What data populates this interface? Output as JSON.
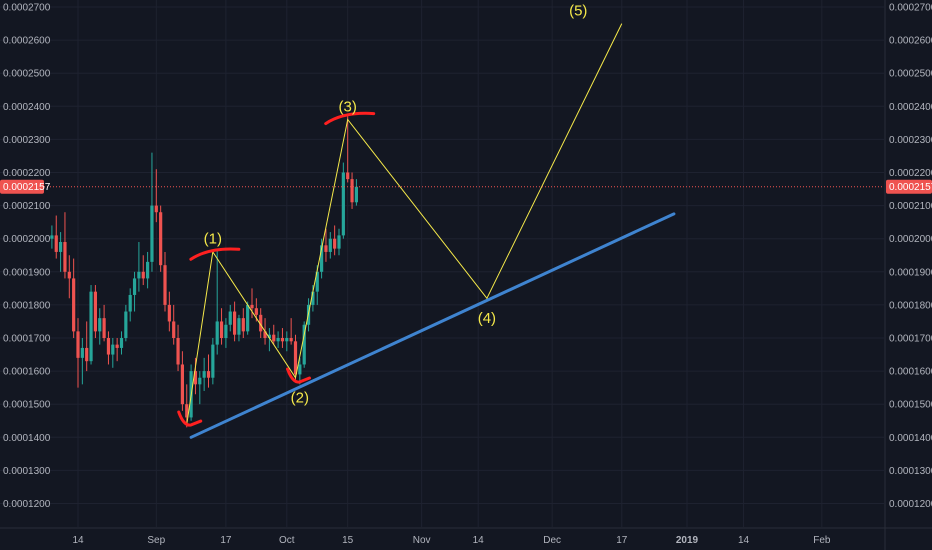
{
  "colors": {
    "background": "#131722",
    "grid": "#1e2230",
    "axis_text": "#b2b5be",
    "up_candle": "#26a69a",
    "down_candle": "#ef5350",
    "trendline": "#3f84d0",
    "wave_line": "#f5e94a",
    "wave_label": "#f5e94a",
    "marker": "#ff2020",
    "price_line": "#ef5350",
    "price_badge": "#ef5350"
  },
  "chart_data": {
    "type": "candlestick",
    "ylim": [
      0.000115,
      0.000271
    ],
    "y_ticks": [
      "0.0001200",
      "0.0001300",
      "0.0001400",
      "0.0001500",
      "0.0001600",
      "0.0001700",
      "0.0001800",
      "0.0001900",
      "0.0002000",
      "0.0002100",
      "0.0002200",
      "0.0002300",
      "0.0002400",
      "0.0002500",
      "0.0002600",
      "0.0002700"
    ],
    "x_ticks": [
      {
        "label": "14",
        "day": 0,
        "bold": false
      },
      {
        "label": "Sep",
        "day": 18,
        "bold": false
      },
      {
        "label": "17",
        "day": 34,
        "bold": false
      },
      {
        "label": "Oct",
        "day": 48,
        "bold": false
      },
      {
        "label": "15",
        "day": 62,
        "bold": false
      },
      {
        "label": "Nov",
        "day": 79,
        "bold": false
      },
      {
        "label": "14",
        "day": 92,
        "bold": false
      },
      {
        "label": "Dec",
        "day": 109,
        "bold": false
      },
      {
        "label": "17",
        "day": 125,
        "bold": false
      },
      {
        "label": "2019",
        "day": 140,
        "bold": true
      },
      {
        "label": "14",
        "day": 153,
        "bold": false
      },
      {
        "label": "Feb",
        "day": 171,
        "bold": false
      }
    ],
    "current_price": {
      "label": "0.0002157",
      "value": 0.0002157
    },
    "candles": [
      {
        "day": -6,
        "o": 0.0002,
        "h": 0.000204,
        "l": 0.000197,
        "c": 0.000201
      },
      {
        "day": -5,
        "o": 0.000201,
        "h": 0.000207,
        "l": 0.000194,
        "c": 0.000196
      },
      {
        "day": -4,
        "o": 0.000196,
        "h": 0.000202,
        "l": 0.00019,
        "c": 0.000199
      },
      {
        "day": -3,
        "o": 0.000199,
        "h": 0.000208,
        "l": 0.000188,
        "c": 0.00019
      },
      {
        "day": -2,
        "o": 0.00019,
        "h": 0.000195,
        "l": 0.000182,
        "c": 0.000188
      },
      {
        "day": -1,
        "o": 0.000188,
        "h": 0.000194,
        "l": 0.00017,
        "c": 0.000172
      },
      {
        "day": 0,
        "o": 0.000172,
        "h": 0.000176,
        "l": 0.000155,
        "c": 0.000164
      },
      {
        "day": 1,
        "o": 0.000164,
        "h": 0.00017,
        "l": 0.000156,
        "c": 0.000167
      },
      {
        "day": 2,
        "o": 0.000167,
        "h": 0.000175,
        "l": 0.00016,
        "c": 0.000163
      },
      {
        "day": 3,
        "o": 0.000163,
        "h": 0.000186,
        "l": 0.000162,
        "c": 0.000184
      },
      {
        "day": 4,
        "o": 0.000184,
        "h": 0.000186,
        "l": 0.00017,
        "c": 0.000172
      },
      {
        "day": 5,
        "o": 0.000172,
        "h": 0.000179,
        "l": 0.000168,
        "c": 0.000176
      },
      {
        "day": 6,
        "o": 0.000176,
        "h": 0.00018,
        "l": 0.000169,
        "c": 0.00017
      },
      {
        "day": 7,
        "o": 0.00017,
        "h": 0.000172,
        "l": 0.000162,
        "c": 0.000165
      },
      {
        "day": 8,
        "o": 0.000165,
        "h": 0.00017,
        "l": 0.000161,
        "c": 0.000168
      },
      {
        "day": 9,
        "o": 0.000168,
        "h": 0.00017,
        "l": 0.000163,
        "c": 0.000167
      },
      {
        "day": 10,
        "o": 0.000167,
        "h": 0.000172,
        "l": 0.000165,
        "c": 0.00017
      },
      {
        "day": 11,
        "o": 0.00017,
        "h": 0.00018,
        "l": 0.000169,
        "c": 0.000178
      },
      {
        "day": 12,
        "o": 0.000178,
        "h": 0.000185,
        "l": 0.000175,
        "c": 0.000183
      },
      {
        "day": 13,
        "o": 0.000183,
        "h": 0.00019,
        "l": 0.000178,
        "c": 0.000188
      },
      {
        "day": 14,
        "o": 0.000188,
        "h": 0.000199,
        "l": 0.000184,
        "c": 0.00019
      },
      {
        "day": 15,
        "o": 0.00019,
        "h": 0.000195,
        "l": 0.000186,
        "c": 0.000188
      },
      {
        "day": 16,
        "o": 0.000188,
        "h": 0.000196,
        "l": 0.000185,
        "c": 0.000193
      },
      {
        "day": 17,
        "o": 0.000193,
        "h": 0.000226,
        "l": 0.00019,
        "c": 0.00021
      },
      {
        "day": 18,
        "o": 0.00021,
        "h": 0.000221,
        "l": 0.000205,
        "c": 0.000208
      },
      {
        "day": 19,
        "o": 0.000208,
        "h": 0.00021,
        "l": 0.00019,
        "c": 0.000192
      },
      {
        "day": 20,
        "o": 0.000192,
        "h": 0.000196,
        "l": 0.000178,
        "c": 0.00018
      },
      {
        "day": 21,
        "o": 0.00018,
        "h": 0.000184,
        "l": 0.000172,
        "c": 0.000175
      },
      {
        "day": 22,
        "o": 0.000175,
        "h": 0.00018,
        "l": 0.000168,
        "c": 0.00017
      },
      {
        "day": 23,
        "o": 0.00017,
        "h": 0.000174,
        "l": 0.00016,
        "c": 0.000162
      },
      {
        "day": 24,
        "o": 0.000162,
        "h": 0.000166,
        "l": 0.000148,
        "c": 0.00015
      },
      {
        "day": 25,
        "o": 0.00015,
        "h": 0.000156,
        "l": 0.000143,
        "c": 0.000146
      },
      {
        "day": 26,
        "o": 0.000146,
        "h": 0.000162,
        "l": 0.000145,
        "c": 0.00016
      },
      {
        "day": 27,
        "o": 0.00016,
        "h": 0.000164,
        "l": 0.000153,
        "c": 0.000156
      },
      {
        "day": 28,
        "o": 0.000156,
        "h": 0.00016,
        "l": 0.00015,
        "c": 0.000158
      },
      {
        "day": 29,
        "o": 0.000158,
        "h": 0.000164,
        "l": 0.000154,
        "c": 0.00016
      },
      {
        "day": 30,
        "o": 0.00016,
        "h": 0.000165,
        "l": 0.000155,
        "c": 0.000158
      },
      {
        "day": 31,
        "o": 0.000158,
        "h": 0.00017,
        "l": 0.000156,
        "c": 0.000168
      },
      {
        "day": 32,
        "o": 0.000168,
        "h": 0.000197,
        "l": 0.000165,
        "c": 0.000175
      },
      {
        "day": 33,
        "o": 0.000175,
        "h": 0.000179,
        "l": 0.000168,
        "c": 0.00017
      },
      {
        "day": 34,
        "o": 0.00017,
        "h": 0.000176,
        "l": 0.000167,
        "c": 0.000174
      },
      {
        "day": 35,
        "o": 0.000174,
        "h": 0.00018,
        "l": 0.000172,
        "c": 0.000178
      },
      {
        "day": 36,
        "o": 0.000178,
        "h": 0.000181,
        "l": 0.000169,
        "c": 0.000171
      },
      {
        "day": 37,
        "o": 0.000171,
        "h": 0.000177,
        "l": 0.000169,
        "c": 0.000176
      },
      {
        "day": 38,
        "o": 0.000176,
        "h": 0.000179,
        "l": 0.00017,
        "c": 0.000172
      },
      {
        "day": 39,
        "o": 0.000172,
        "h": 0.000181,
        "l": 0.000171,
        "c": 0.00018
      },
      {
        "day": 40,
        "o": 0.00018,
        "h": 0.000185,
        "l": 0.000176,
        "c": 0.000179
      },
      {
        "day": 41,
        "o": 0.000179,
        "h": 0.000182,
        "l": 0.000175,
        "c": 0.000177
      },
      {
        "day": 42,
        "o": 0.000177,
        "h": 0.000179,
        "l": 0.00017,
        "c": 0.000172
      },
      {
        "day": 43,
        "o": 0.000172,
        "h": 0.000176,
        "l": 0.000168,
        "c": 0.00017
      },
      {
        "day": 44,
        "o": 0.00017,
        "h": 0.000173,
        "l": 0.000166,
        "c": 0.000171
      },
      {
        "day": 45,
        "o": 0.000171,
        "h": 0.000174,
        "l": 0.000168,
        "c": 0.000169
      },
      {
        "day": 46,
        "o": 0.000169,
        "h": 0.000172,
        "l": 0.000167,
        "c": 0.00017
      },
      {
        "day": 47,
        "o": 0.00017,
        "h": 0.000173,
        "l": 0.000167,
        "c": 0.000169
      },
      {
        "day": 48,
        "o": 0.000169,
        "h": 0.000172,
        "l": 0.000166,
        "c": 0.00017
      },
      {
        "day": 49,
        "o": 0.00017,
        "h": 0.000176,
        "l": 0.000168,
        "c": 0.000169
      },
      {
        "day": 50,
        "o": 0.000169,
        "h": 0.000171,
        "l": 0.000157,
        "c": 0.000159
      },
      {
        "day": 51,
        "o": 0.000159,
        "h": 0.000164,
        "l": 0.000156,
        "c": 0.000162
      },
      {
        "day": 52,
        "o": 0.000162,
        "h": 0.000175,
        "l": 0.000161,
        "c": 0.000174
      },
      {
        "day": 53,
        "o": 0.000174,
        "h": 0.000182,
        "l": 0.000172,
        "c": 0.00018
      },
      {
        "day": 54,
        "o": 0.00018,
        "h": 0.000186,
        "l": 0.000178,
        "c": 0.000184
      },
      {
        "day": 55,
        "o": 0.000184,
        "h": 0.000192,
        "l": 0.00018,
        "c": 0.00019
      },
      {
        "day": 56,
        "o": 0.00019,
        "h": 0.0002,
        "l": 0.000188,
        "c": 0.000198
      },
      {
        "day": 57,
        "o": 0.000198,
        "h": 0.000203,
        "l": 0.000193,
        "c": 0.000196
      },
      {
        "day": 58,
        "o": 0.000196,
        "h": 0.000202,
        "l": 0.000194,
        "c": 0.0002
      },
      {
        "day": 59,
        "o": 0.0002,
        "h": 0.000204,
        "l": 0.000195,
        "c": 0.000197
      },
      {
        "day": 60,
        "o": 0.000197,
        "h": 0.000203,
        "l": 0.000195,
        "c": 0.000201
      },
      {
        "day": 61,
        "o": 0.000201,
        "h": 0.000223,
        "l": 0.0002,
        "c": 0.00022
      },
      {
        "day": 62,
        "o": 0.00022,
        "h": 0.000237,
        "l": 0.000217,
        "c": 0.000218
      },
      {
        "day": 63,
        "o": 0.000218,
        "h": 0.00022,
        "l": 0.000209,
        "c": 0.000211
      },
      {
        "day": 64,
        "o": 0.000211,
        "h": 0.000218,
        "l": 0.00021,
        "c": 0.0002157
      }
    ],
    "trendline": {
      "from": {
        "day": 26,
        "price": 0.00014
      },
      "to": {
        "day": 137,
        "price": 0.0002075
      }
    },
    "wave_path": [
      {
        "day": 25,
        "price": 0.000144
      },
      {
        "day": 31,
        "price": 0.000196
      },
      {
        "day": 50,
        "price": 0.000158
      },
      {
        "day": 62,
        "price": 0.000236
      },
      {
        "day": 94,
        "price": 0.000182
      },
      {
        "day": 125,
        "price": 0.000265
      }
    ],
    "wave_labels": [
      {
        "text": "(1)",
        "day": 31,
        "price": 0.0002
      },
      {
        "text": "(2)",
        "day": 51,
        "price": 0.000152
      },
      {
        "text": "(3)",
        "day": 62,
        "price": 0.00024
      },
      {
        "text": "(4)",
        "day": 94,
        "price": 0.000176
      },
      {
        "text": "(5)",
        "day": 115,
        "price": 0.000269
      }
    ],
    "markers": [
      {
        "name": "low-marker",
        "day": 25,
        "price": 0.000144,
        "shape": "check"
      },
      {
        "name": "wave1-marker",
        "day": 31,
        "price": 0.0001965,
        "shape": "arc"
      },
      {
        "name": "wave2-marker",
        "day": 50,
        "price": 0.000157,
        "shape": "check"
      },
      {
        "name": "wave3-marker",
        "day": 62,
        "price": 0.0002375,
        "shape": "arc"
      }
    ]
  }
}
